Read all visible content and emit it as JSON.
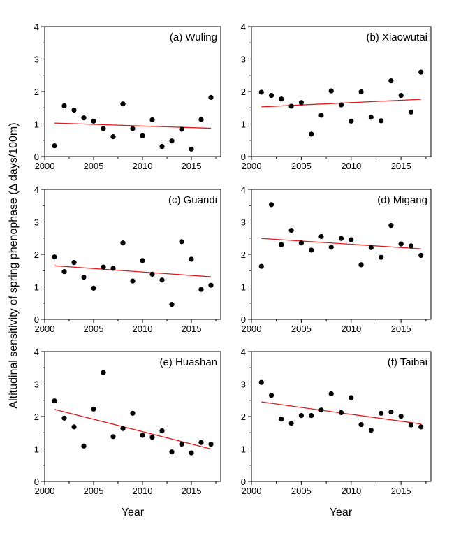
{
  "chart_data": {
    "type": "scatter",
    "layout": "3x2 grid of panels with linear trend lines",
    "ylabel": "Altitudinal sensitivity of spring phenophase (Δ days/100m)",
    "xlabel": "Year",
    "xlim": [
      2000,
      2018
    ],
    "ylim": [
      0,
      4
    ],
    "xticks": [
      2000,
      2005,
      2010,
      2015
    ],
    "yticks": [
      0,
      1,
      2,
      3,
      4
    ],
    "grid": false,
    "point_color": "#000000",
    "trend_color": "#e0191b",
    "panels": [
      {
        "title": "(a) Wuling",
        "x": [
          2001,
          2002,
          2003,
          2004,
          2005,
          2006,
          2007,
          2008,
          2009,
          2010,
          2011,
          2012,
          2013,
          2014,
          2015,
          2016,
          2017
        ],
        "y": [
          0.33,
          1.56,
          1.43,
          1.19,
          1.09,
          0.86,
          0.61,
          1.62,
          0.86,
          0.64,
          1.13,
          0.31,
          0.48,
          0.84,
          0.23,
          1.14,
          1.82
        ],
        "trend": {
          "x": [
            2001,
            2017
          ],
          "y": [
            1.03,
            0.87
          ]
        }
      },
      {
        "title": "(b) Xiaowutai",
        "x": [
          2001,
          2002,
          2003,
          2004,
          2005,
          2006,
          2007,
          2008,
          2009,
          2010,
          2011,
          2012,
          2013,
          2014,
          2015,
          2016,
          2017
        ],
        "y": [
          1.98,
          1.88,
          1.77,
          1.55,
          1.66,
          0.69,
          1.27,
          2.02,
          1.59,
          1.09,
          1.99,
          1.21,
          1.1,
          2.33,
          1.88,
          1.37,
          2.6
        ],
        "trend": {
          "x": [
            2001,
            2017
          ],
          "y": [
            1.53,
            1.76
          ]
        }
      },
      {
        "title": "(c) Guandi",
        "x": [
          2001,
          2002,
          2003,
          2004,
          2005,
          2006,
          2007,
          2008,
          2009,
          2010,
          2011,
          2012,
          2013,
          2014,
          2015,
          2016,
          2017
        ],
        "y": [
          1.92,
          1.47,
          1.75,
          1.3,
          0.96,
          1.61,
          1.57,
          2.35,
          1.18,
          1.81,
          1.39,
          1.21,
          0.46,
          2.39,
          1.85,
          0.92,
          1.05
        ],
        "trend": {
          "x": [
            2001,
            2017
          ],
          "y": [
            1.65,
            1.31
          ]
        }
      },
      {
        "title": "(d) Migang",
        "x": [
          2001,
          2002,
          2003,
          2004,
          2005,
          2006,
          2007,
          2008,
          2009,
          2010,
          2011,
          2012,
          2013,
          2014,
          2015,
          2016,
          2017
        ],
        "y": [
          1.63,
          3.53,
          2.3,
          2.74,
          2.35,
          2.13,
          2.55,
          2.22,
          2.49,
          2.45,
          1.68,
          2.21,
          1.91,
          2.89,
          2.32,
          2.26,
          1.97
        ],
        "trend": {
          "x": [
            2001,
            2017
          ],
          "y": [
            2.49,
            2.17
          ]
        }
      },
      {
        "title": "(e) Huashan",
        "x": [
          2001,
          2002,
          2003,
          2004,
          2005,
          2006,
          2007,
          2008,
          2009,
          2010,
          2011,
          2012,
          2013,
          2014,
          2015,
          2016,
          2017
        ],
        "y": [
          2.48,
          1.95,
          1.68,
          1.09,
          2.23,
          3.35,
          1.38,
          1.63,
          2.1,
          1.42,
          1.36,
          1.56,
          0.91,
          1.15,
          0.88,
          1.2,
          1.15
        ],
        "trend": {
          "x": [
            2001,
            2017
          ],
          "y": [
            2.22,
            1.0
          ]
        }
      },
      {
        "title": "(f) Taibai",
        "x": [
          2001,
          2002,
          2003,
          2004,
          2005,
          2006,
          2007,
          2008,
          2009,
          2010,
          2011,
          2012,
          2013,
          2014,
          2015,
          2016,
          2017
        ],
        "y": [
          3.05,
          2.65,
          1.92,
          1.79,
          2.03,
          2.03,
          2.2,
          2.7,
          2.12,
          2.58,
          1.75,
          1.58,
          2.1,
          2.14,
          2.01,
          1.74,
          1.68
        ],
        "trend": {
          "x": [
            2001,
            2017
          ],
          "y": [
            2.45,
            1.77
          ]
        }
      }
    ]
  }
}
